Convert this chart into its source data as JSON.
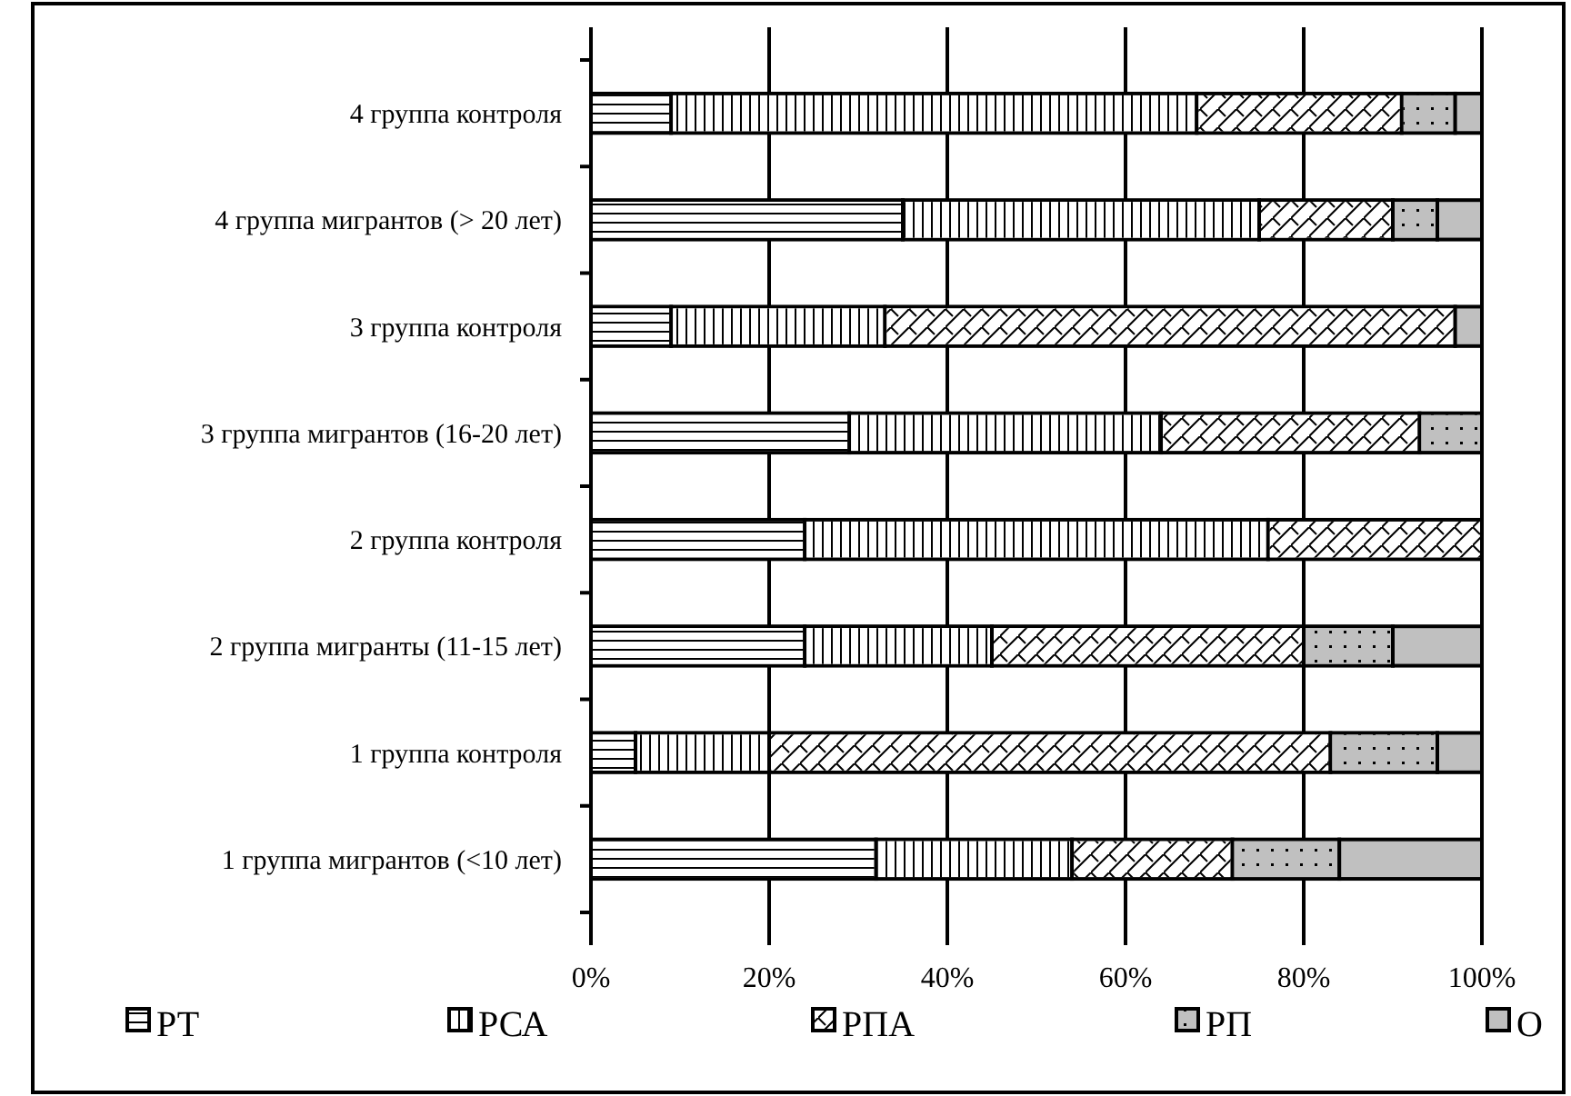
{
  "chart_data": {
    "type": "bar",
    "orientation": "horizontal",
    "stacked": true,
    "categories": [
      "4 группа контроля",
      "4 группа мигрантов (> 20 лет)",
      "3 группа контроля",
      "3 группа мигрантов (16-20 лет)",
      "2 группа контроля",
      "2 группа мигранты (11-15 лет)",
      "1 группа контроля",
      "1 группа мигрантов (<10 лет)"
    ],
    "series": [
      {
        "name": "РТ",
        "color": "#ffffff",
        "values": [
          9,
          35,
          9,
          29,
          24,
          24,
          5,
          32
        ]
      },
      {
        "name": "РСА",
        "color": "#ffffff",
        "values": [
          59,
          40,
          24,
          35,
          52,
          21,
          15,
          22
        ]
      },
      {
        "name": "РПА",
        "color": "#ffffff",
        "values": [
          23,
          15,
          64,
          29,
          24,
          35,
          63,
          18
        ]
      },
      {
        "name": "РП",
        "color": "#c0c0c0",
        "values": [
          6,
          5,
          0,
          7,
          0,
          10,
          12,
          12
        ]
      },
      {
        "name": "О",
        "color": "#c0c0c0",
        "values": [
          3,
          5,
          3,
          0,
          0,
          10,
          5,
          16
        ]
      }
    ],
    "xlim": [
      0,
      100
    ],
    "xticks": [
      {
        "value": 0,
        "label": "0%"
      },
      {
        "value": 20,
        "label": "20%"
      },
      {
        "value": 40,
        "label": "40%"
      },
      {
        "value": 60,
        "label": "60%"
      },
      {
        "value": 80,
        "label": "80%"
      },
      {
        "value": 100,
        "label": "100%"
      }
    ],
    "grid": "x",
    "legend": "bottom"
  }
}
